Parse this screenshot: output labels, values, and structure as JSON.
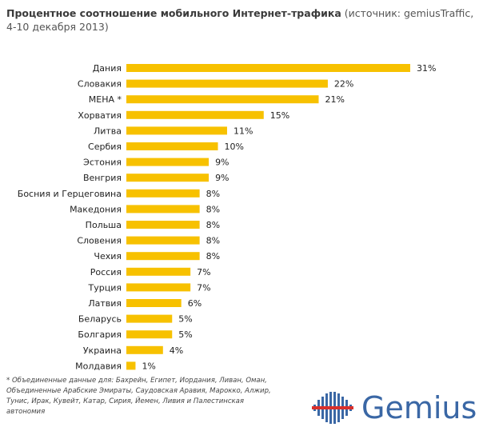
{
  "title": {
    "main": "Процентное соотношение мобильного Интернет-трафика",
    "source": "(источник: gemiusTraffic,",
    "period": "4-10 декабря 2013)"
  },
  "chart_data": {
    "type": "bar",
    "orientation": "horizontal",
    "categories": [
      "Дания",
      "Словакия",
      "МЕНА *",
      "Хорватия",
      "Литва",
      "Сербия",
      "Эстония",
      "Венгрия",
      "Босния и Герцеговина",
      "Македония",
      "Польша",
      "Словения",
      "Чехия",
      "Россия",
      "Турция",
      "Латвия",
      "Беларусь",
      "Болгария",
      "Украина",
      "Молдавия"
    ],
    "values": [
      31,
      22,
      21,
      15,
      11,
      10,
      9,
      9,
      8,
      8,
      8,
      8,
      8,
      7,
      7,
      6,
      5,
      5,
      4,
      1
    ],
    "value_labels": [
      "31%",
      "22%",
      "21%",
      "15%",
      "11%",
      "10%",
      "9%",
      "9%",
      "8%",
      "8%",
      "8%",
      "8%",
      "8%",
      "7%",
      "7%",
      "6%",
      "5%",
      "5%",
      "4%",
      "1%"
    ],
    "xlim": [
      0,
      31
    ],
    "bar_color": "#f7c100",
    "grid": false,
    "legend": "none"
  },
  "footnote": "* Объединенные данные для: Бахрейн, Египет, Иордания, Ливан, Оман, Объединенные Арабские Эмираты, Саудовская Аравия, Марокко, Алжир, Тунис, Ирак, Кувейт, Катар, Сирия, Йемен, Ливия и Палестинская автономия",
  "logo": {
    "text": "Gemius",
    "color": "#3a67a5"
  }
}
